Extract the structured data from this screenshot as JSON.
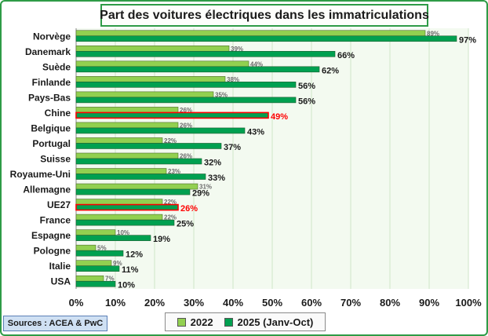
{
  "chart_data": {
    "type": "bar",
    "orientation": "horizontal",
    "title": "Part des voitures électriques dans les immatriculations",
    "categories": [
      "Norvège",
      "Danemark",
      "Suède",
      "Finlande",
      "Pays-Bas",
      "Chine",
      "Belgique",
      "Portugal",
      "Suisse",
      "Royaume-Uni",
      "Allemagne",
      "UE27",
      "France",
      "Espagne",
      "Pologne",
      "Italie",
      "USA"
    ],
    "series": [
      {
        "name": "2022",
        "color": "#92d050",
        "values": [
          89,
          39,
          44,
          38,
          35,
          26,
          26,
          22,
          26,
          23,
          31,
          22,
          22,
          10,
          5,
          9,
          7
        ],
        "labels": [
          "89%",
          "39%",
          "44%",
          "38%",
          "35%",
          "26%",
          "26%",
          "22%",
          "26%",
          "23%",
          "31%",
          "22%",
          "22%",
          "10%",
          "5%",
          "9%",
          "7%"
        ]
      },
      {
        "name": "2025 (Janv-Oct)",
        "color": "#00a050",
        "values": [
          97,
          66,
          62,
          56,
          56,
          49,
          43,
          37,
          32,
          33,
          29,
          26,
          25,
          19,
          12,
          11,
          10
        ],
        "labels": [
          "97%",
          "66%",
          "62%",
          "56%",
          "56%",
          "49%",
          "43%",
          "37%",
          "32%",
          "33%",
          "29%",
          "26%",
          "25%",
          "19%",
          "12%",
          "11%",
          "10%"
        ]
      }
    ],
    "highlight": {
      "categories": [
        "Chine",
        "UE27"
      ],
      "color": "#ff0000"
    },
    "xlim": [
      0,
      100
    ],
    "xticks": [
      "0%",
      "10%",
      "20%",
      "30%",
      "40%",
      "50%",
      "60%",
      "70%",
      "80%",
      "90%",
      "100%"
    ],
    "grid": true,
    "legend": "bottom"
  },
  "source": "Sources : ACEA & PwC",
  "colors": {
    "frame": "#2e9b46",
    "plot_bg": "#f3faf0",
    "grid": "#cfe6c8"
  }
}
